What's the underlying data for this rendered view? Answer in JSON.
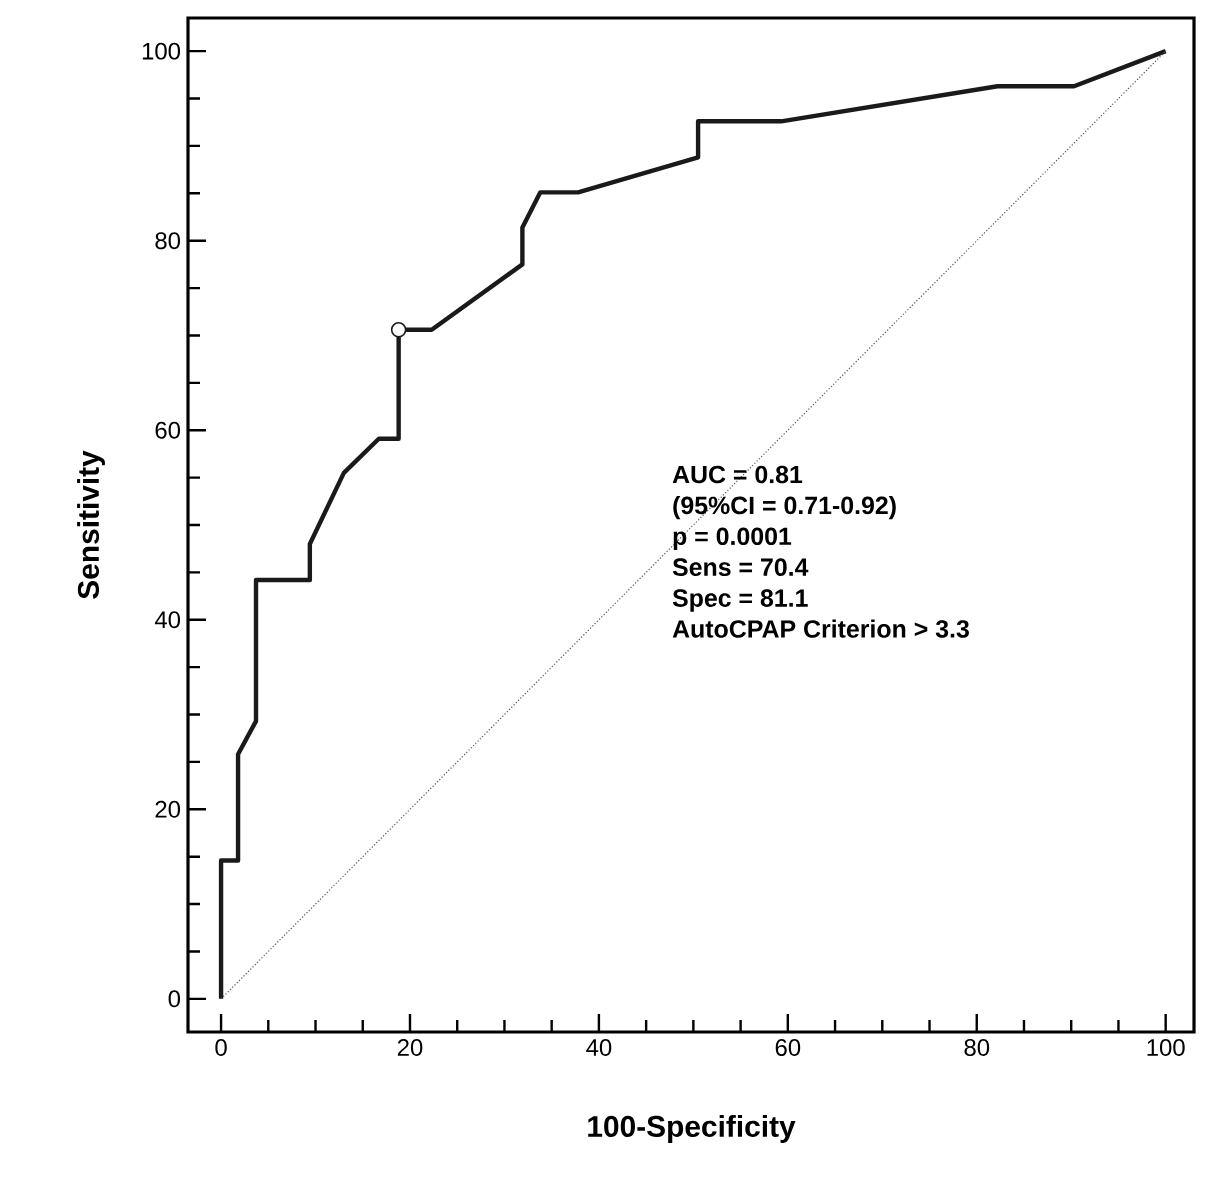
{
  "chart_data": {
    "type": "line",
    "xlabel": "100-Specificity",
    "ylabel": "Sensitivity",
    "xlim": [
      -3.5,
      103
    ],
    "ylim": [
      -3.5,
      103.5
    ],
    "xticks": [
      0,
      {
        "value": 5,
        "label": null
      },
      {
        "value": 10,
        "label": null
      },
      {
        "value": 15,
        "label": null
      },
      20,
      {
        "value": 25,
        "label": null
      },
      {
        "value": 30,
        "label": null
      },
      {
        "value": 35,
        "label": null
      },
      40,
      {
        "value": 45,
        "label": null
      },
      {
        "value": 50,
        "label": null
      },
      {
        "value": 55,
        "label": null
      },
      60,
      {
        "value": 65,
        "label": null
      },
      {
        "value": 70,
        "label": null
      },
      {
        "value": 75,
        "label": null
      },
      80,
      {
        "value": 85,
        "label": null
      },
      {
        "value": 90,
        "label": null
      },
      {
        "value": 95,
        "label": null
      },
      100
    ],
    "yticks": [
      0,
      {
        "value": 5,
        "label": null
      },
      {
        "value": 10,
        "label": null
      },
      {
        "value": 15,
        "label": null
      },
      20,
      {
        "value": 25,
        "label": null
      },
      {
        "value": 30,
        "label": null
      },
      {
        "value": 35,
        "label": null
      },
      40,
      {
        "value": 45,
        "label": null
      },
      {
        "value": 50,
        "label": null
      },
      {
        "value": 55,
        "label": null
      },
      60,
      {
        "value": 65,
        "label": null
      },
      {
        "value": 70,
        "label": null
      },
      {
        "value": 75,
        "label": null
      },
      80,
      {
        "value": 85,
        "label": null
      },
      {
        "value": 90,
        "label": null
      },
      {
        "value": 95,
        "label": null
      },
      100
    ],
    "series": [
      {
        "color": "#1a1a1a",
        "line_style": "solid",
        "x": [
          0,
          0,
          1.8,
          1.8,
          3.7,
          3.7,
          9.4,
          9.4,
          13.0,
          16.7,
          18.8,
          18.8,
          22.3,
          31.9,
          31.9,
          33.8,
          37.8,
          50.5,
          50.5,
          59.3,
          82.2,
          90.3,
          100
        ],
        "values": [
          0,
          14.6,
          14.6,
          25.8,
          29.3,
          44.2,
          44.2,
          48.0,
          55.5,
          59.1,
          59.1,
          70.6,
          70.6,
          77.5,
          81.4,
          85.1,
          85.1,
          88.8,
          92.6,
          92.6,
          96.3,
          96.3,
          100
        ]
      },
      {
        "color": "#555555",
        "line_style": "dotted",
        "x": [
          0,
          100
        ],
        "values": [
          0,
          100
        ]
      },
      {
        "type": "scatter",
        "color": "#1a1a1a",
        "marker": "circle",
        "x": [
          18.8
        ],
        "values": [
          70.6
        ]
      }
    ],
    "annotations": [
      "AUC = 0.81",
      "(95%CI = 0.71-0.92)",
      "p = 0.0001",
      "Sens = 70.4",
      "Spec = 81.1",
      "AutoCPAP Criterion > 3.3"
    ]
  }
}
